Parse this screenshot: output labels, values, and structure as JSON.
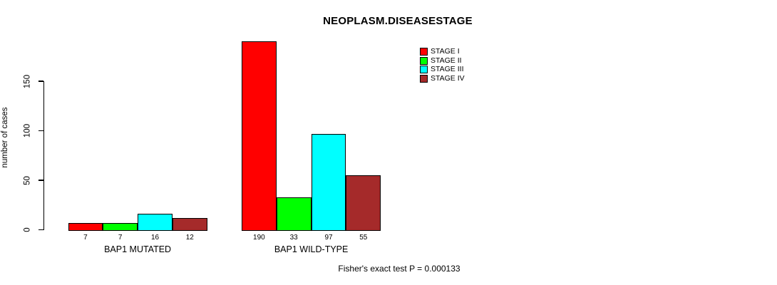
{
  "chart_data": {
    "type": "bar",
    "title": "NEOPLASM.DISEASESTAGE",
    "ylabel": "number of cases",
    "yticks": [
      0,
      50,
      100,
      150
    ],
    "ylim": [
      0,
      190
    ],
    "grid": false,
    "legend_position": "top-right",
    "groups": [
      "BAP1 MUTATED",
      "BAP1 WILD-TYPE"
    ],
    "series": [
      {
        "name": "STAGE I",
        "color": "#ff0000",
        "values": [
          7,
          190
        ]
      },
      {
        "name": "STAGE II",
        "color": "#00ff00",
        "values": [
          7,
          33
        ]
      },
      {
        "name": "STAGE III",
        "color": "#00ffff",
        "values": [
          16,
          97
        ]
      },
      {
        "name": "STAGE IV",
        "color": "#a52a2a",
        "values": [
          12,
          55
        ]
      }
    ],
    "bar_value_labels": {
      "BAP1 MUTATED": [
        "7",
        "7",
        "16",
        "12"
      ],
      "BAP1 WILD-TYPE": [
        "190",
        "33",
        "97",
        "55"
      ]
    },
    "annotation": "Fisher's exact test P = 0.000133"
  }
}
